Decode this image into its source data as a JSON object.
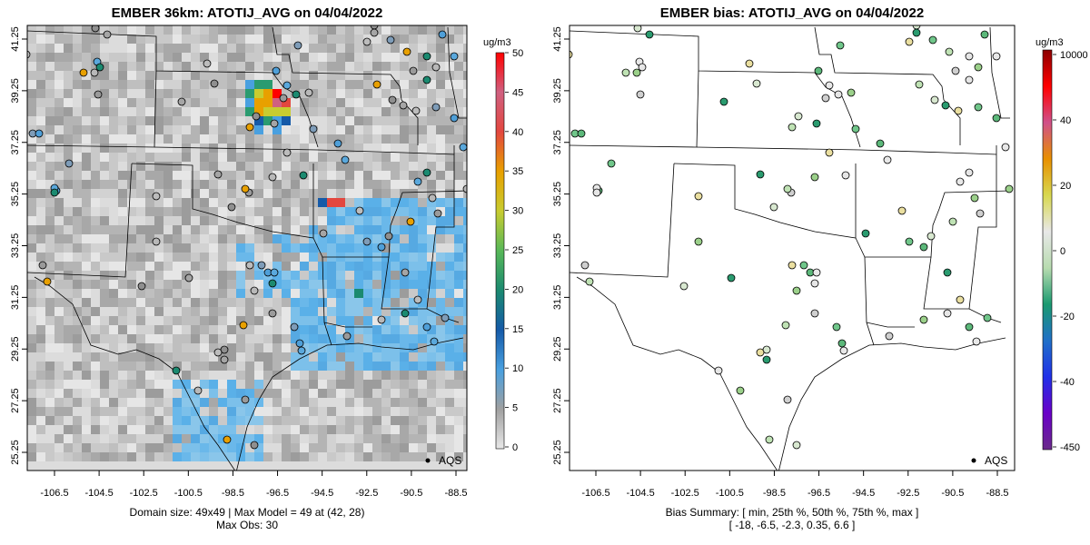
{
  "left": {
    "title": "EMBER 36km: ATOTIJ_AVG on 04/04/2022",
    "x_ticks": [
      "-106.5",
      "-104.5",
      "-102.5",
      "-100.5",
      "-98.5",
      "-96.5",
      "-94.5",
      "-92.5",
      "-90.5",
      "-88.5"
    ],
    "y_ticks": [
      "41.25",
      "39.25",
      "37.25",
      "35.25",
      "33.25",
      "31.25",
      "29.25",
      "27.25",
      "25.25"
    ],
    "colorbar": {
      "unit": "ug/m3",
      "ticks": [
        "50",
        "45",
        "40",
        "35",
        "30",
        "25",
        "20",
        "15",
        "10",
        "5",
        "0"
      ],
      "stops": [
        "#ff0000",
        "#d06080",
        "#e3473f",
        "#e8a000",
        "#c8cc30",
        "#58b858",
        "#1b8a70",
        "#155aa8",
        "#49a0e0",
        "#a0a0a0",
        "#e8e8e8"
      ]
    },
    "legend_label": "AQS",
    "footnote": [
      "Domain size: 49x49 | Max Model = 49 at (42, 28)",
      "Max Obs: 30"
    ]
  },
  "right": {
    "title": "EMBER bias: ATOTIJ_AVG on 04/04/2022",
    "x_ticks": [
      "-106.5",
      "-104.5",
      "-102.5",
      "-100.5",
      "-98.5",
      "-96.5",
      "-94.5",
      "-92.5",
      "-90.5",
      "-88.5"
    ],
    "y_ticks": [
      "41.25",
      "39.25",
      "37.25",
      "35.25",
      "33.25",
      "31.25",
      "29.25",
      "27.25",
      "25.25"
    ],
    "colorbar": {
      "unit": "ug/m3",
      "ticks": [
        "10000",
        "40",
        "20",
        "0",
        "-20",
        "-40",
        "-450"
      ],
      "stops": [
        "#8b0000",
        "#ff0000",
        "#d0508a",
        "#e89000",
        "#d8d850",
        "#e8e8e8",
        "#b8dcb0",
        "#1b9a70",
        "#2070c8",
        "#2030e8",
        "#6a00c8",
        "#6a2a8a"
      ]
    },
    "legend_label": "AQS",
    "footnote": [
      "Bias Summary: [ min, 25th %, 50th %, 75th %, max ]",
      "[ -18,   -6.5,   -2.3,   0.35,   6.6 ]"
    ]
  }
}
